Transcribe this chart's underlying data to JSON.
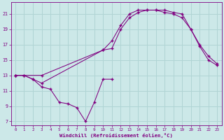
{
  "bg_color": "#cce8e8",
  "grid_color": "#b0d4d4",
  "line_color": "#800080",
  "marker": "+",
  "xlabel": "Windchill (Refroidissement éolien,°C)",
  "xlabel_color": "#800080",
  "tick_color": "#800080",
  "ylim": [
    6.5,
    22.5
  ],
  "xlim": [
    -0.5,
    23.5
  ],
  "yticks": [
    7,
    9,
    11,
    13,
    15,
    17,
    19,
    21
  ],
  "xticks": [
    0,
    1,
    2,
    3,
    4,
    5,
    6,
    7,
    8,
    9,
    10,
    11,
    12,
    13,
    14,
    15,
    16,
    17,
    18,
    19,
    20,
    21,
    22,
    23
  ],
  "line1_x": [
    0,
    1,
    2,
    3,
    4,
    5,
    6,
    7,
    8,
    9,
    10,
    11
  ],
  "line1_y": [
    13,
    13,
    12.5,
    11.5,
    11.2,
    9.5,
    9.3,
    8.8,
    7.0,
    9.5,
    12.5,
    12.5
  ],
  "line2_x": [
    0,
    1,
    2,
    3,
    10,
    11,
    12,
    13,
    14,
    15,
    16,
    17,
    18,
    19,
    20,
    21,
    22,
    23
  ],
  "line2_y": [
    13,
    13,
    12.5,
    12.0,
    16.3,
    16.5,
    19.0,
    20.5,
    21.2,
    21.5,
    21.5,
    21.2,
    21.0,
    20.5,
    19.0,
    17.0,
    15.5,
    14.5
  ],
  "line3_x": [
    0,
    3,
    10,
    11,
    12,
    13,
    14,
    15,
    16,
    17,
    18,
    19,
    20,
    21,
    22,
    23
  ],
  "line3_y": [
    13,
    13,
    16.3,
    17.5,
    19.5,
    21.0,
    21.5,
    21.5,
    21.5,
    21.5,
    21.2,
    21.0,
    19.0,
    16.8,
    15.0,
    14.3
  ]
}
